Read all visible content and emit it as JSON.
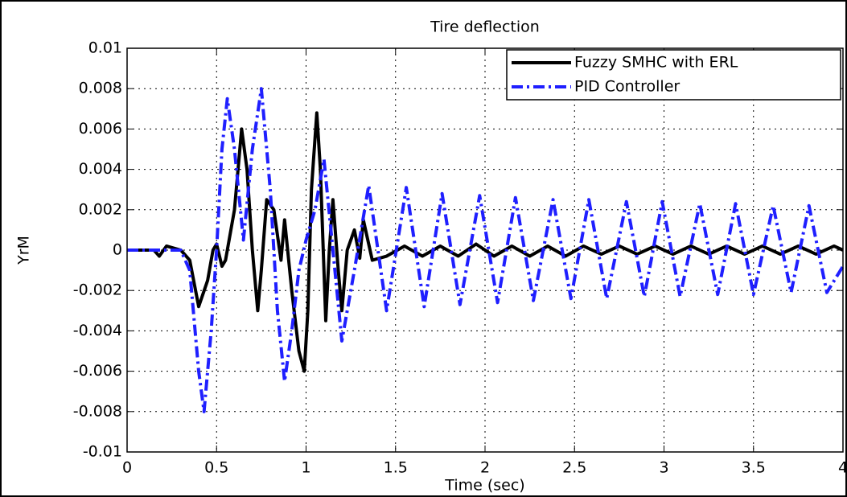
{
  "chart_data": {
    "type": "line",
    "title": "Tire deflection",
    "x_label": "Time (sec)",
    "y_label": "YrM",
    "xlim": [
      0,
      4
    ],
    "xticks": [
      0,
      0.5,
      1,
      1.5,
      2,
      2.5,
      3,
      3.5,
      4
    ],
    "ylim": [
      -0.01,
      0.01
    ],
    "yticks": [
      -0.01,
      -0.008,
      -0.006,
      -0.004,
      -0.002,
      0,
      0.002,
      0.004,
      0.006,
      0.008,
      0.01
    ],
    "grid": true,
    "legend": "upper right",
    "series": [
      {
        "name": "Fuzzy SMHC with ERL",
        "color": "#000000",
        "style": "solid",
        "x": [
          0,
          0.15,
          0.18,
          0.22,
          0.3,
          0.35,
          0.4,
          0.45,
          0.48,
          0.5,
          0.53,
          0.55,
          0.6,
          0.64,
          0.67,
          0.7,
          0.73,
          0.75,
          0.78,
          0.82,
          0.86,
          0.88,
          0.92,
          0.96,
          0.99,
          1.01,
          1.03,
          1.06,
          1.08,
          1.11,
          1.13,
          1.15,
          1.18,
          1.2,
          1.23,
          1.27,
          1.3,
          1.32,
          1.37,
          1.45,
          1.55,
          1.65,
          1.75,
          1.85,
          1.95,
          2.05,
          2.15,
          2.25,
          2.35,
          2.45,
          2.55,
          2.65,
          2.75,
          2.85,
          2.95,
          3.05,
          3.15,
          3.25,
          3.35,
          3.45,
          3.55,
          3.65,
          3.75,
          3.85,
          3.95,
          4
        ],
        "values": [
          0,
          0,
          -0.0003,
          0.0002,
          0,
          -0.0005,
          -0.0028,
          -0.0015,
          0,
          0.0003,
          -0.0008,
          -0.0005,
          0.002,
          0.006,
          0.004,
          0,
          -0.003,
          -0.001,
          0.0025,
          0.002,
          -0.0005,
          0.0015,
          -0.002,
          -0.005,
          -0.006,
          -0.003,
          0.003,
          0.0068,
          0.004,
          -0.0035,
          0,
          0.0025,
          -0.001,
          -0.003,
          0,
          0.001,
          -0.0004,
          0.0015,
          -0.0005,
          -0.0003,
          0.0002,
          -0.0003,
          0.0002,
          -0.0003,
          0.0003,
          -0.0003,
          0.0002,
          -0.0003,
          0.0002,
          -0.0003,
          0.0002,
          -0.0002,
          0.0002,
          -0.0002,
          0.0002,
          -0.0002,
          0.0002,
          -0.0002,
          0.0002,
          -0.0002,
          0.0002,
          -0.0002,
          0.0002,
          -0.0002,
          0.0002,
          0
        ]
      },
      {
        "name": "PID Controller",
        "color": "#1f1fff",
        "style": "dashdot",
        "x": [
          0,
          0.3,
          0.35,
          0.4,
          0.43,
          0.47,
          0.5,
          0.53,
          0.56,
          0.6,
          0.65,
          0.7,
          0.75,
          0.8,
          0.84,
          0.88,
          0.92,
          0.96,
          1.0,
          1.05,
          1.1,
          1.15,
          1.2,
          1.27,
          1.35,
          1.45,
          1.56,
          1.66,
          1.76,
          1.86,
          1.97,
          2.07,
          2.17,
          2.27,
          2.38,
          2.48,
          2.58,
          2.68,
          2.79,
          2.89,
          2.99,
          3.09,
          3.2,
          3.3,
          3.4,
          3.5,
          3.61,
          3.71,
          3.81,
          3.91,
          4
        ],
        "values": [
          0,
          0,
          -0.001,
          -0.006,
          -0.008,
          -0.004,
          0,
          0.005,
          0.0075,
          0.005,
          0.0005,
          0.005,
          0.008,
          0.003,
          -0.003,
          -0.0065,
          -0.004,
          -0.001,
          0.0005,
          0.002,
          0.0045,
          0,
          -0.0045,
          -0.001,
          0.0032,
          -0.003,
          0.0031,
          -0.0028,
          0.0028,
          -0.0027,
          0.0027,
          -0.0026,
          0.0026,
          -0.0025,
          0.0025,
          -0.0024,
          0.0025,
          -0.0024,
          0.0024,
          -0.0023,
          0.0024,
          -0.0023,
          0.0023,
          -0.0022,
          0.0023,
          -0.0022,
          0.0022,
          -0.0021,
          0.0022,
          -0.0021,
          -0.0008
        ]
      }
    ]
  }
}
